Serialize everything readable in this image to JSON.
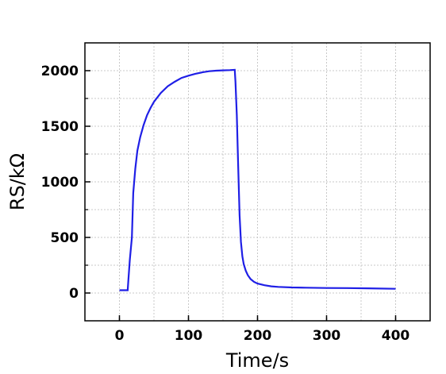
{
  "chart_data": {
    "type": "line",
    "xlabel": "Time/s",
    "ylabel": "RS/kΩ",
    "xlim": [
      -50,
      450
    ],
    "ylim": [
      -250,
      2250
    ],
    "xticks": [
      0,
      100,
      200,
      300,
      400
    ],
    "yticks": [
      0,
      500,
      1000,
      1500,
      2000
    ],
    "grid": true,
    "line_color": "#1f1fe6",
    "series": [
      {
        "x": [
          0,
          12,
          13,
          15,
          18,
          20,
          23,
          26,
          30,
          35,
          40,
          45,
          50,
          60,
          70,
          80,
          90,
          100,
          110,
          120,
          130,
          140,
          150,
          160,
          167,
          168,
          170,
          172,
          174,
          176,
          178,
          180,
          183,
          186,
          190,
          195,
          200,
          210,
          220,
          230,
          250,
          270,
          300,
          330,
          360,
          400
        ],
        "y": [
          25,
          25,
          120,
          300,
          500,
          900,
          1120,
          1280,
          1400,
          1510,
          1600,
          1665,
          1720,
          1800,
          1860,
          1900,
          1935,
          1955,
          1972,
          1985,
          1995,
          2000,
          2003,
          2005,
          2008,
          1900,
          1600,
          1150,
          700,
          460,
          330,
          260,
          200,
          160,
          125,
          100,
          85,
          70,
          60,
          55,
          50,
          48,
          45,
          44,
          42,
          38
        ]
      }
    ]
  }
}
